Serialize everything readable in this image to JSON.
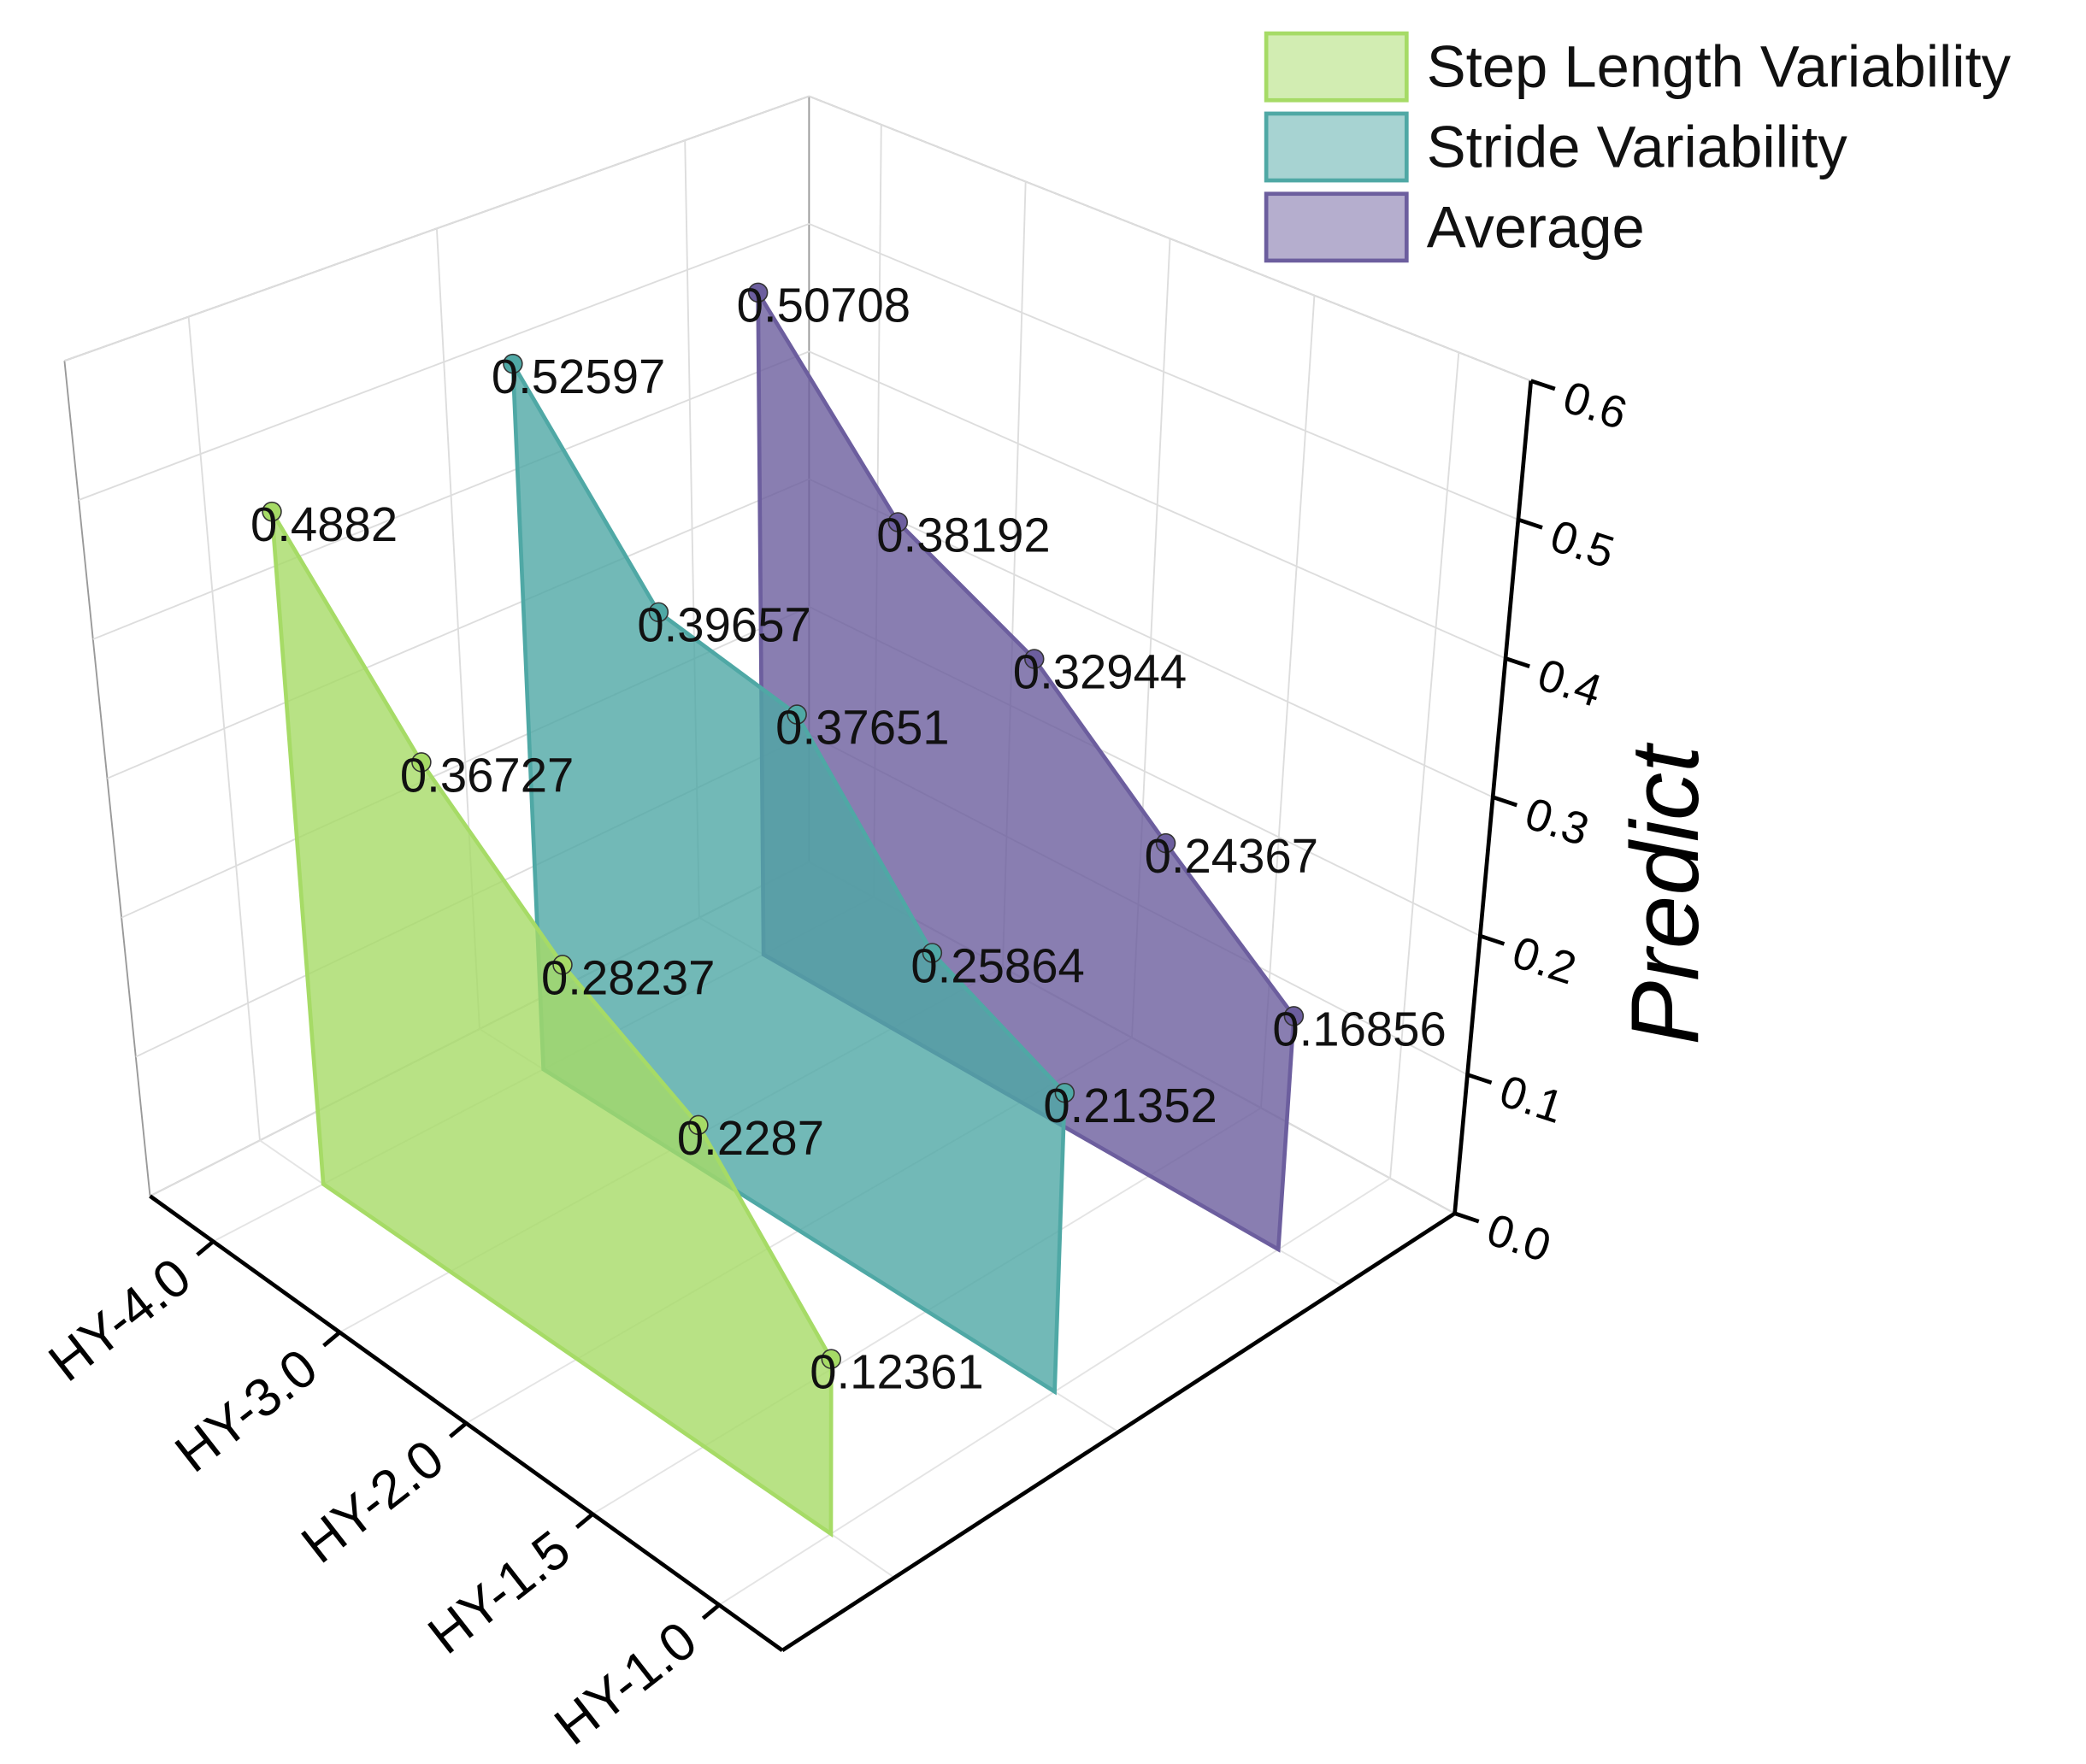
{
  "chart_data": {
    "type": "wall3d",
    "categories": [
      "HY-4.0",
      "HY-3.0",
      "HY-2.0",
      "HY-1.5",
      "HY-1.0"
    ],
    "series": [
      {
        "name": "Step Length Variability",
        "color": "#a6db66",
        "values": [
          0.4882,
          0.36727,
          0.28237,
          0.2287,
          0.12361
        ]
      },
      {
        "name": "Stride Variability",
        "color": "#4fa8a5",
        "values": [
          0.52597,
          0.39657,
          0.37651,
          0.25864,
          0.21352
        ]
      },
      {
        "name": "Average",
        "color": "#6c5e9e",
        "values": [
          0.50708,
          0.38192,
          0.32944,
          0.24367,
          0.16856
        ]
      }
    ],
    "ylabel": "Predict",
    "ylim": [
      0,
      0.6
    ],
    "yticks": [
      {
        "value": 0,
        "label": "0.0"
      },
      0.1,
      0.2,
      0.3,
      0.4,
      0.5,
      0.6
    ],
    "grid": true
  }
}
